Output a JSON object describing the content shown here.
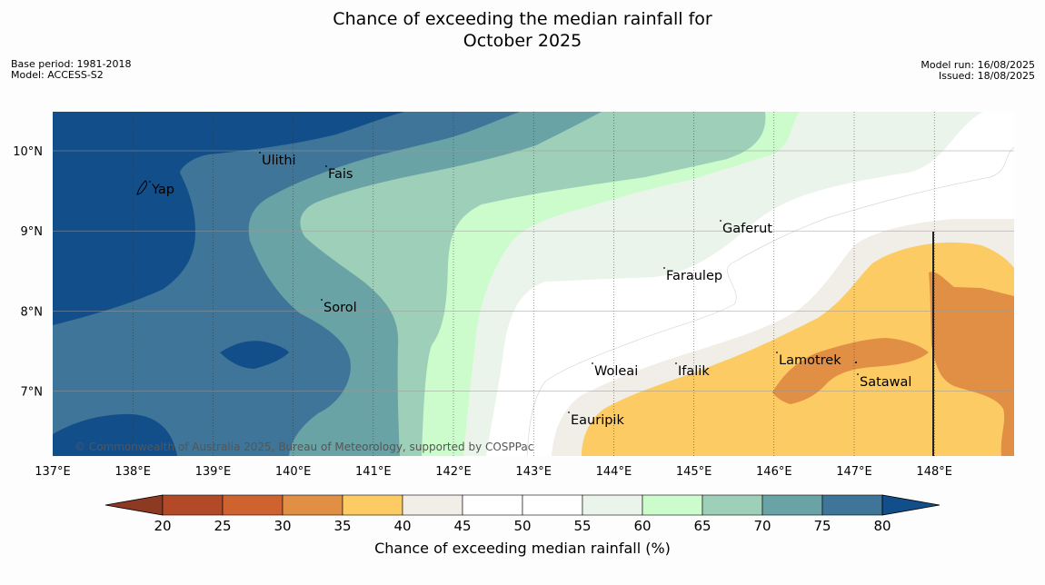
{
  "title_line1": "Chance of exceeding the median rainfall for",
  "title_line2": "October 2025",
  "meta_left": {
    "base_period": "Base period: 1981-2018",
    "model": "Model: ACCESS-S2"
  },
  "meta_right": {
    "model_run": "Model run: 16/08/2025",
    "issued": "Issued: 18/08/2025"
  },
  "copyright": "© Commonwealth of Australia 2025, Bureau of Meteorology, supported by COSPPac",
  "lon_labels": [
    "137°E",
    "138°E",
    "139°E",
    "140°E",
    "141°E",
    "142°E",
    "143°E",
    "144°E",
    "145°E",
    "146°E",
    "147°E",
    "148°E"
  ],
  "lat_labels": [
    "10°N",
    "9°N",
    "8°N",
    "7°N"
  ],
  "places": [
    {
      "name": "Ulithi"
    },
    {
      "name": "Fais"
    },
    {
      "name": "Yap"
    },
    {
      "name": "Gaferut"
    },
    {
      "name": "Faraulep"
    },
    {
      "name": "Sorol"
    },
    {
      "name": "Woleai"
    },
    {
      "name": "Ifalik"
    },
    {
      "name": "Lamotrek"
    },
    {
      "name": "Satawal"
    },
    {
      "name": "Eauripik"
    }
  ],
  "legend": {
    "label": "Chance of exceeding median rainfall (%)",
    "ticks": [
      "20",
      "25",
      "30",
      "35",
      "40",
      "45",
      "50",
      "55",
      "60",
      "65",
      "70",
      "75",
      "80"
    ],
    "colors": [
      "#8e3a22",
      "#b24a28",
      "#cf6330",
      "#e08f44",
      "#fdcb64",
      "#f1ede7",
      "#ffffff",
      "#ffffff",
      "#eaf4ea",
      "#ccfbcc",
      "#9ecfb8",
      "#6aa3a6",
      "#3f7598",
      "#124e8a"
    ]
  }
}
